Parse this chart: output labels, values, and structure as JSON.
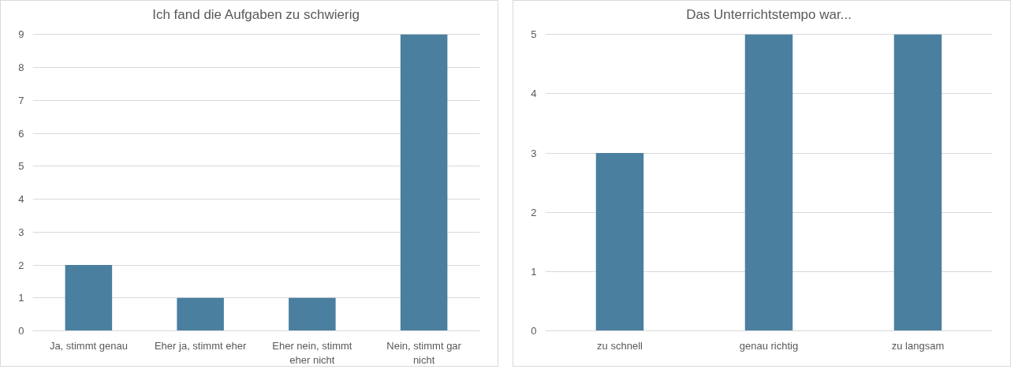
{
  "chart_data": [
    {
      "type": "bar",
      "title": "Ich fand die Aufgaben zu schwierig",
      "categories": [
        "Ja, stimmt genau",
        "Eher ja, stimmt eher",
        "Eher nein, stimmt eher nicht",
        "Nein, stimmt gar nicht"
      ],
      "values": [
        2,
        1,
        1,
        9
      ],
      "color": "#4a7fa0",
      "ylim": [
        0,
        9
      ],
      "yticks": [
        0,
        1,
        2,
        3,
        4,
        5,
        6,
        7,
        8,
        9
      ],
      "grid": "y"
    },
    {
      "type": "bar",
      "title": "Das Unterrichtstempo war...",
      "categories": [
        "zu schnell",
        "genau richtig",
        "zu langsam"
      ],
      "values": [
        3,
        5,
        5
      ],
      "color": "#4a7fa0",
      "ylim": [
        0,
        5
      ],
      "yticks": [
        0,
        1,
        2,
        3,
        4,
        5
      ],
      "grid": "y"
    }
  ]
}
